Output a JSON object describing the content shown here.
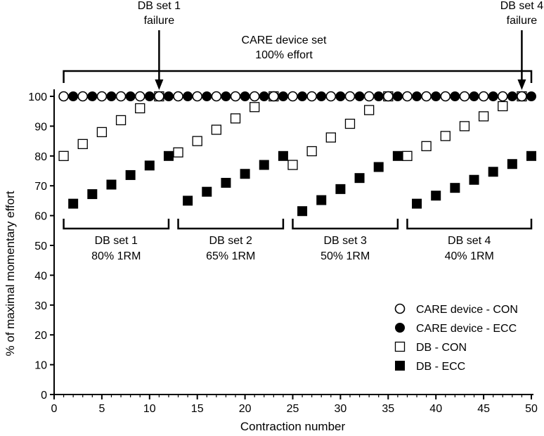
{
  "chart_data": {
    "type": "scatter",
    "title": "",
    "xlabel": "Contraction number",
    "ylabel": "% of maximal momentary effort",
    "xlim": [
      0,
      50
    ],
    "ylim": [
      0,
      100
    ],
    "xticks": [
      0,
      5,
      10,
      15,
      20,
      25,
      30,
      35,
      40,
      45,
      50
    ],
    "yticks": [
      0,
      10,
      20,
      30,
      40,
      50,
      60,
      70,
      80,
      90,
      100
    ],
    "series": [
      {
        "name": "CARE device - CON",
        "marker": "circle-open",
        "points": [
          [
            1,
            100
          ],
          [
            3,
            100
          ],
          [
            5,
            100
          ],
          [
            7,
            100
          ],
          [
            9,
            100
          ],
          [
            11,
            100
          ],
          [
            13,
            100
          ],
          [
            15,
            100
          ],
          [
            17,
            100
          ],
          [
            19,
            100
          ],
          [
            21,
            100
          ],
          [
            23,
            100
          ],
          [
            25,
            100
          ],
          [
            27,
            100
          ],
          [
            29,
            100
          ],
          [
            31,
            100
          ],
          [
            33,
            100
          ],
          [
            35,
            100
          ],
          [
            37,
            100
          ],
          [
            39,
            100
          ],
          [
            41,
            100
          ],
          [
            43,
            100
          ],
          [
            45,
            100
          ],
          [
            47,
            100
          ],
          [
            49,
            100
          ]
        ]
      },
      {
        "name": "CARE device - ECC",
        "marker": "circle-filled",
        "points": [
          [
            2,
            100
          ],
          [
            4,
            100
          ],
          [
            6,
            100
          ],
          [
            8,
            100
          ],
          [
            10,
            100
          ],
          [
            12,
            100
          ],
          [
            14,
            100
          ],
          [
            16,
            100
          ],
          [
            18,
            100
          ],
          [
            20,
            100
          ],
          [
            22,
            100
          ],
          [
            24,
            100
          ],
          [
            26,
            100
          ],
          [
            28,
            100
          ],
          [
            30,
            100
          ],
          [
            32,
            100
          ],
          [
            34,
            100
          ],
          [
            36,
            100
          ],
          [
            38,
            100
          ],
          [
            40,
            100
          ],
          [
            42,
            100
          ],
          [
            44,
            100
          ],
          [
            46,
            100
          ],
          [
            48,
            100
          ],
          [
            50,
            100
          ]
        ]
      },
      {
        "name": "DB - CON",
        "marker": "square-open",
        "points": [
          [
            1,
            80
          ],
          [
            3,
            84
          ],
          [
            5,
            88
          ],
          [
            7,
            92
          ],
          [
            9,
            96
          ],
          [
            11,
            100
          ],
          [
            13,
            81.2
          ],
          [
            15,
            85
          ],
          [
            17,
            88.8
          ],
          [
            19,
            92.6
          ],
          [
            21,
            96.4
          ],
          [
            23,
            100
          ],
          [
            25,
            77
          ],
          [
            27,
            81.6
          ],
          [
            29,
            86.2
          ],
          [
            31,
            90.8
          ],
          [
            33,
            95.4
          ],
          [
            35,
            100
          ],
          [
            37,
            80
          ],
          [
            39,
            83.3
          ],
          [
            41,
            86.7
          ],
          [
            43,
            90
          ],
          [
            45,
            93.3
          ],
          [
            47,
            96.7
          ],
          [
            49,
            100
          ]
        ]
      },
      {
        "name": "DB - ECC",
        "marker": "square-filled",
        "points": [
          [
            2,
            64
          ],
          [
            4,
            67.2
          ],
          [
            6,
            70.4
          ],
          [
            8,
            73.6
          ],
          [
            10,
            76.8
          ],
          [
            12,
            80
          ],
          [
            14,
            65
          ],
          [
            16,
            68
          ],
          [
            18,
            71
          ],
          [
            20,
            74
          ],
          [
            22,
            77
          ],
          [
            24,
            80
          ],
          [
            26,
            61.5
          ],
          [
            28,
            65.2
          ],
          [
            30,
            68.9
          ],
          [
            32,
            72.6
          ],
          [
            34,
            76.3
          ],
          [
            36,
            80
          ],
          [
            38,
            64
          ],
          [
            40,
            66.7
          ],
          [
            42,
            69.3
          ],
          [
            44,
            72
          ],
          [
            46,
            74.7
          ],
          [
            48,
            77.3
          ],
          [
            50,
            80
          ]
        ]
      }
    ],
    "top_bracket": {
      "line1": "CARE device set",
      "line2": "100% effort",
      "x_range": [
        1,
        50
      ]
    },
    "failure_arrows": [
      {
        "line1": "DB set 1",
        "line2": "failure",
        "x": 11
      },
      {
        "line1": "DB set 4",
        "line2": "failure",
        "x": 49
      }
    ],
    "set_brackets": [
      {
        "line1": "DB set 1",
        "line2": "80% 1RM",
        "x_range": [
          1,
          12
        ]
      },
      {
        "line1": "DB set 2",
        "line2": "65% 1RM",
        "x_range": [
          13,
          24
        ]
      },
      {
        "line1": "DB set 3",
        "line2": "50% 1RM",
        "x_range": [
          25,
          36
        ]
      },
      {
        "line1": "DB set 4",
        "line2": "40% 1RM",
        "x_range": [
          37,
          50
        ]
      }
    ],
    "legend_position": "bottom-right"
  }
}
